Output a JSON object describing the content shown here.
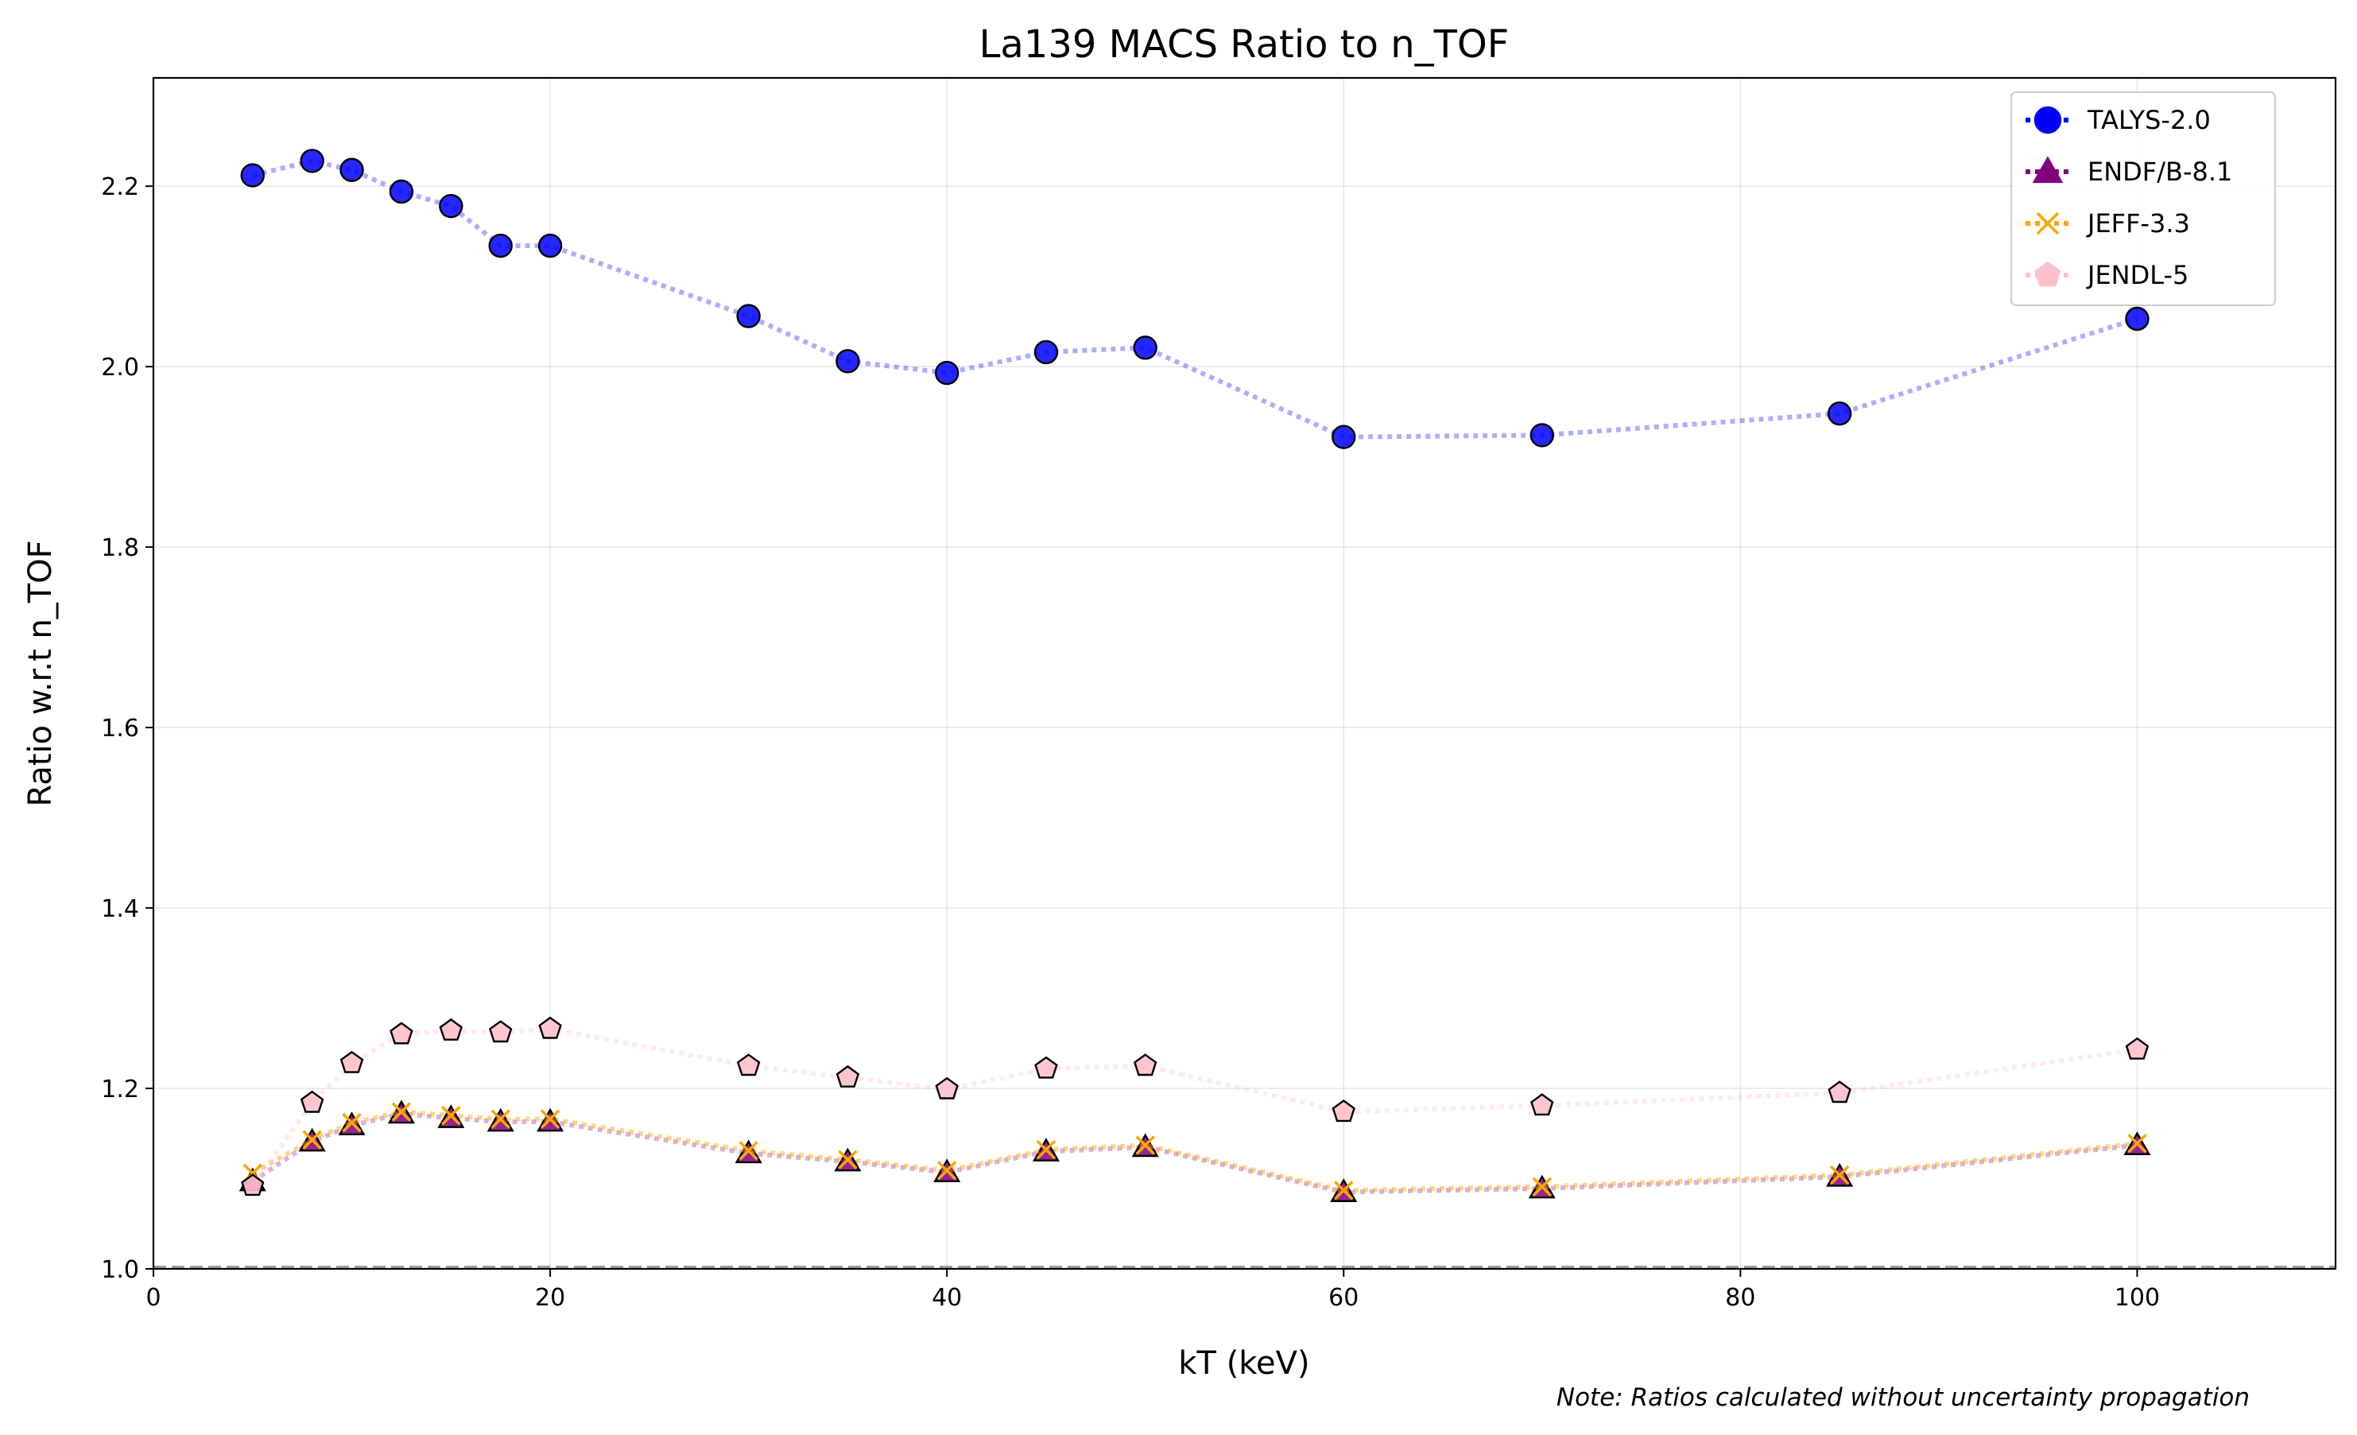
{
  "chart_data": {
    "type": "line",
    "title": "La139 MACS Ratio to n_TOF",
    "xlabel": "kT (keV)",
    "ylabel": "Ratio w.r.t n_TOF",
    "note": "Note: Ratios calculated without uncertainty propagation",
    "xlim": [
      0,
      110
    ],
    "ylim": [
      1.0,
      2.32
    ],
    "xticks": [
      0,
      20,
      40,
      60,
      80,
      100
    ],
    "yticks": [
      1.0,
      1.2,
      1.4,
      1.6,
      1.8,
      2.0,
      2.2
    ],
    "xtick_labels": [
      "0",
      "20",
      "40",
      "60",
      "80",
      "100"
    ],
    "ytick_labels": [
      "1.0",
      "1.2",
      "1.4",
      "1.6",
      "1.8",
      "2.0",
      "2.2"
    ],
    "grid": true,
    "reference_line": 1.0,
    "legend_position": "upper right",
    "x": [
      5,
      8,
      10,
      12.5,
      15,
      17.5,
      20,
      30,
      35,
      40,
      45,
      50,
      60,
      70,
      85,
      100
    ],
    "series": [
      {
        "name": "TALYS-2.0",
        "color": "#0000ff",
        "marker": "circle",
        "values": [
          2.212,
          2.228,
          2.218,
          2.194,
          2.178,
          2.134,
          2.134,
          2.056,
          2.006,
          1.993,
          2.016,
          2.021,
          1.922,
          1.924,
          1.948,
          2.053
        ]
      },
      {
        "name": "ENDF/B-8.1",
        "color": "#800080",
        "marker": "triangle",
        "values": [
          1.097,
          1.141,
          1.159,
          1.172,
          1.167,
          1.163,
          1.163,
          1.128,
          1.119,
          1.107,
          1.13,
          1.135,
          1.085,
          1.089,
          1.102,
          1.137
        ]
      },
      {
        "name": "JEFF-3.3",
        "color": "#ffa500",
        "marker": "x",
        "values": [
          1.106,
          1.143,
          1.162,
          1.174,
          1.17,
          1.166,
          1.166,
          1.131,
          1.121,
          1.109,
          1.132,
          1.137,
          1.087,
          1.091,
          1.104,
          1.139
        ]
      },
      {
        "name": "JENDL-5",
        "color": "#ffc0cb",
        "marker": "pentagon",
        "values": [
          1.092,
          1.184,
          1.228,
          1.26,
          1.264,
          1.262,
          1.266,
          1.225,
          1.212,
          1.199,
          1.222,
          1.225,
          1.174,
          1.181,
          1.195,
          1.243
        ]
      }
    ]
  }
}
